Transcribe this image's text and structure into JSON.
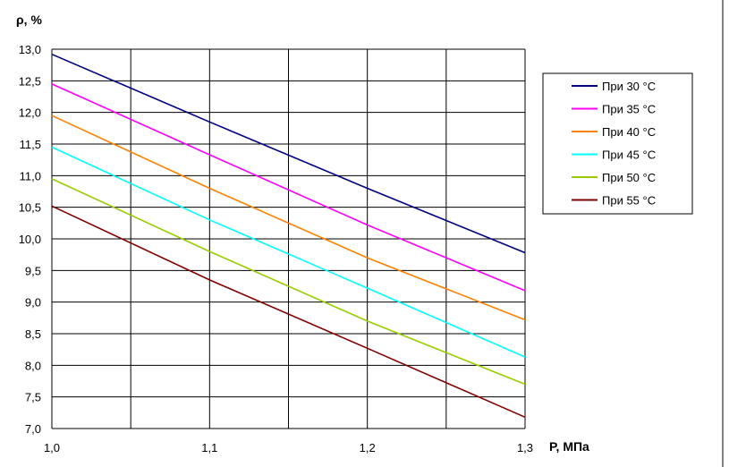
{
  "chart_data": {
    "type": "line",
    "title": "",
    "ylabel": "ρ, %",
    "xlabel": "P, МПа",
    "xlim": [
      1.0,
      1.3
    ],
    "ylim": [
      7.0,
      13.0
    ],
    "x_ticks": [
      "1,0",
      "1,1",
      "1,2",
      "1,3"
    ],
    "x_tick_values": [
      1.0,
      1.1,
      1.2,
      1.3
    ],
    "y_ticks": [
      "7,0",
      "7,5",
      "8,0",
      "8,5",
      "9,0",
      "9,5",
      "10,0",
      "10,5",
      "11,0",
      "11,5",
      "12,0",
      "12,5",
      "13,0"
    ],
    "y_tick_values": [
      7.0,
      7.5,
      8.0,
      8.5,
      9.0,
      9.5,
      10.0,
      10.5,
      11.0,
      11.5,
      12.0,
      12.5,
      13.0
    ],
    "grid_x_values": [
      1.0,
      1.05,
      1.1,
      1.15,
      1.2,
      1.25,
      1.3
    ],
    "grid_y_values": [
      7.0,
      7.5,
      8.0,
      8.5,
      9.0,
      9.5,
      10.0,
      10.5,
      11.0,
      11.5,
      12.0,
      12.5,
      13.0
    ],
    "grid": true,
    "legend_position": "right",
    "series": [
      {
        "name": "При 30 °С",
        "color": "#000080",
        "x": [
          1.0,
          1.1,
          1.2,
          1.3
        ],
        "y": [
          12.92,
          11.85,
          10.8,
          9.78
        ]
      },
      {
        "name": "При 35 °С",
        "color": "#ff00ff",
        "x": [
          1.0,
          1.1,
          1.2,
          1.3
        ],
        "y": [
          12.45,
          11.33,
          10.22,
          9.18
        ]
      },
      {
        "name": "При 40 °С",
        "color": "#ff8000",
        "x": [
          1.0,
          1.1,
          1.2,
          1.3
        ],
        "y": [
          11.95,
          10.8,
          9.7,
          8.72
        ]
      },
      {
        "name": "При 45 °С",
        "color": "#00ffff",
        "x": [
          1.0,
          1.1,
          1.2,
          1.3
        ],
        "y": [
          11.45,
          10.3,
          9.22,
          8.13
        ]
      },
      {
        "name": "При 50 °С",
        "color": "#99cc00",
        "x": [
          1.0,
          1.1,
          1.2,
          1.3
        ],
        "y": [
          10.95,
          9.8,
          8.7,
          7.7
        ]
      },
      {
        "name": "При 55 °С",
        "color": "#800000",
        "x": [
          1.0,
          1.1,
          1.2,
          1.3
        ],
        "y": [
          10.52,
          9.35,
          8.27,
          7.18
        ]
      }
    ]
  }
}
